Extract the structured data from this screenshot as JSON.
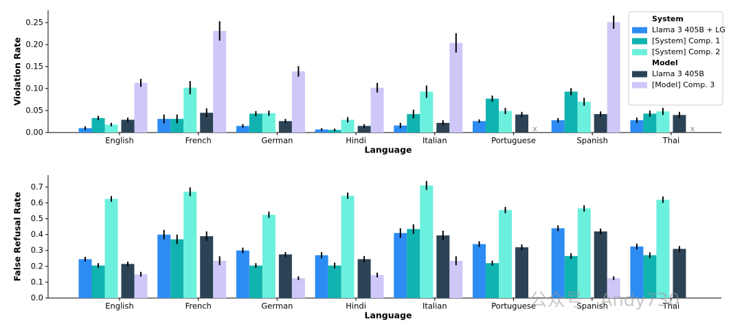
{
  "chart_data": [
    {
      "type": "bar",
      "x_label": "Language",
      "y_label": "Violation Rate",
      "categories": [
        "English",
        "French",
        "German",
        "Hindi",
        "Italian",
        "Portuguese",
        "Spanish",
        "Thai"
      ],
      "ylim": [
        0,
        0.278
      ],
      "yticks": [
        {
          "value": 0,
          "label": "0.00"
        },
        0.05,
        {
          "value": 0.1,
          "label": "0.10"
        },
        0.15,
        {
          "value": 0.2,
          "label": "0.20"
        },
        0.25
      ],
      "legend": "upper right",
      "missing_marker": "x",
      "series_groups": [
        {
          "name": "System",
          "series": [
            {
              "name": "Llama 3 405B + LG",
              "color": "#2d8cf3",
              "values": [
                0.01,
                0.031,
                0.015,
                0.007,
                0.016,
                0.026,
                0.028,
                0.028
              ],
              "errors": [
                0.004,
                0.01,
                0.004,
                0.003,
                0.006,
                0.004,
                0.005,
                0.006
              ]
            },
            {
              "name": "[System] Comp. 1",
              "color": "#10b3b0",
              "values": [
                0.033,
                0.031,
                0.043,
                0.006,
                0.042,
                0.077,
                0.093,
                0.043
              ],
              "errors": [
                0.005,
                0.01,
                0.006,
                0.003,
                0.01,
                0.007,
                0.008,
                0.007
              ]
            },
            {
              "name": "[System] Comp. 2",
              "color": "#6cf0de",
              "values": [
                0.018,
                0.102,
                0.044,
                0.029,
                0.093,
                0.049,
                0.07,
                0.048
              ],
              "errors": [
                0.004,
                0.015,
                0.006,
                0.006,
                0.014,
                0.007,
                0.009,
                0.008
              ]
            }
          ]
        },
        {
          "name": "Model",
          "series": [
            {
              "name": "Llama 3 405B",
              "color": "#2c4356",
              "values": [
                0.029,
                0.045,
                0.026,
                0.015,
                0.022,
                0.041,
                0.042,
                0.04
              ],
              "errors": [
                0.005,
                0.01,
                0.005,
                0.004,
                0.006,
                0.006,
                0.006,
                0.007
              ]
            },
            {
              "name": "[Model] Comp. 3",
              "color": "#cec7f8",
              "values": [
                0.113,
                0.231,
                0.139,
                0.102,
                0.204,
                null,
                0.251,
                null
              ],
              "errors": [
                0.009,
                0.022,
                0.012,
                0.011,
                0.022,
                null,
                0.015,
                null
              ]
            }
          ]
        }
      ]
    },
    {
      "type": "bar",
      "x_label": "Language",
      "y_label": "False Refusal Rate",
      "categories": [
        "English",
        "French",
        "German",
        "Hindi",
        "Italian",
        "Portuguese",
        "Spanish",
        "Thai"
      ],
      "ylim": [
        0,
        0.775
      ],
      "yticks": [
        {
          "value": 0,
          "label": "0.0"
        },
        0.1,
        0.2,
        0.3,
        0.4,
        0.5,
        0.6,
        0.7
      ],
      "series_groups": [
        {
          "series": [
            {
              "color": "#2d8cf3",
              "values": [
                0.245,
                0.4,
                0.3,
                0.27,
                0.41,
                0.34,
                0.44,
                0.325
              ],
              "errors": [
                0.015,
                0.03,
                0.018,
                0.02,
                0.03,
                0.018,
                0.018,
                0.018
              ]
            },
            {
              "color": "#10b3b0",
              "values": [
                0.205,
                0.37,
                0.205,
                0.205,
                0.435,
                0.22,
                0.265,
                0.27
              ],
              "errors": [
                0.015,
                0.03,
                0.015,
                0.018,
                0.03,
                0.015,
                0.018,
                0.018
              ]
            },
            {
              "color": "#6cf0de",
              "values": [
                0.625,
                0.67,
                0.525,
                0.645,
                0.71,
                0.555,
                0.565,
                0.62
              ],
              "errors": [
                0.018,
                0.028,
                0.02,
                0.02,
                0.028,
                0.02,
                0.02,
                0.02
              ]
            }
          ]
        },
        {
          "series": [
            {
              "color": "#2c4356",
              "values": [
                0.215,
                0.39,
                0.275,
                0.245,
                0.395,
                0.32,
                0.42,
                0.31
              ],
              "errors": [
                0.015,
                0.03,
                0.015,
                0.02,
                0.03,
                0.018,
                0.018,
                0.018
              ]
            },
            {
              "color": "#cec7f8",
              "values": [
                0.15,
                0.235,
                0.125,
                0.145,
                0.235,
                null,
                0.125,
                null
              ],
              "errors": [
                0.015,
                0.028,
                0.012,
                0.015,
                0.028,
                null,
                0.012,
                null
              ]
            }
          ]
        }
      ]
    }
  ],
  "watermark": "公众号 · Andy730"
}
